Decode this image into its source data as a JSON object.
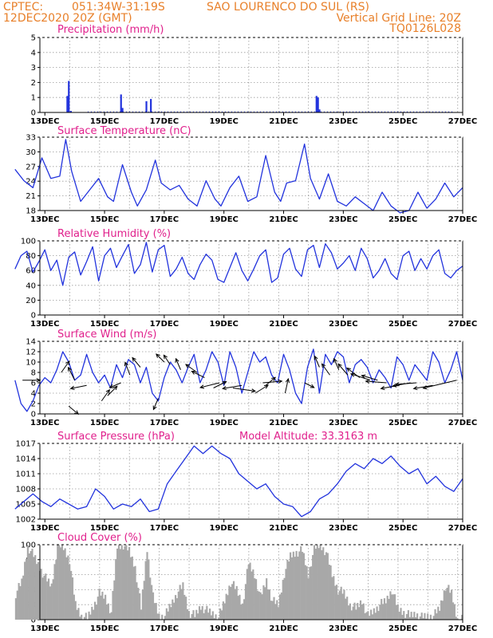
{
  "header": {
    "line1_left": "CPTEC:",
    "coords": "051:34W-31:19S",
    "location": "SAO LOURENCO DO SUL (RS)",
    "datetime": "12DEC2020 20Z (GMT)",
    "grid_note": "Vertical Grid Line: 20Z",
    "code": "TQ0126L028"
  },
  "colors": {
    "header": "#e8802a",
    "title": "#e0208c",
    "line": "#2233dd",
    "cloud": "#a8a8a8",
    "arrow": "#000000"
  },
  "x_axis": {
    "ticks": [
      "13DEC",
      "15DEC",
      "17DEC",
      "19DEC",
      "21DEC",
      "23DEC",
      "25DEC",
      "27DEC"
    ]
  },
  "chart_data": [
    {
      "type": "bar",
      "title": "Precipitation (mm/h)",
      "ylim": [
        0,
        5
      ],
      "yticks": [
        "0",
        "1",
        "2",
        "3",
        "4",
        "5"
      ],
      "points": [
        [
          13.75,
          1.1
        ],
        [
          13.8,
          2.1
        ],
        [
          13.87,
          0.1
        ],
        [
          15.55,
          1.2
        ],
        [
          15.6,
          0.3
        ],
        [
          16.4,
          0.75
        ],
        [
          16.55,
          0.9
        ],
        [
          22.1,
          1.1
        ],
        [
          22.15,
          1.0
        ],
        [
          22.2,
          0.2
        ]
      ]
    },
    {
      "type": "line",
      "title": "Surface Temperature (nC)",
      "ylim": [
        17,
        33
      ],
      "yticks": [
        "18",
        "21",
        "24",
        "27",
        "30",
        "33"
      ],
      "x": [
        12.0,
        12.3,
        12.6,
        12.9,
        13.2,
        13.5,
        13.7,
        13.9,
        14.2,
        14.5,
        14.8,
        15.1,
        15.3,
        15.6,
        15.9,
        16.1,
        16.4,
        16.7,
        16.9,
        17.2,
        17.5,
        17.8,
        18.1,
        18.4,
        18.7,
        18.9,
        19.2,
        19.5,
        19.8,
        20.1,
        20.4,
        20.7,
        20.9,
        21.1,
        21.4,
        21.7,
        21.9,
        22.2,
        22.5,
        22.8,
        23.1,
        23.4,
        23.7,
        24.0,
        24.3,
        24.6,
        24.9,
        25.2,
        25.5,
        25.8,
        26.1,
        26.4,
        26.7,
        27.0
      ],
      "values": [
        26.0,
        23.5,
        22.0,
        28.5,
        24.0,
        24.5,
        32.5,
        25.5,
        19.0,
        21.5,
        24.0,
        20.0,
        19.0,
        27.0,
        21.0,
        18.0,
        21.5,
        28.0,
        23.0,
        21.5,
        22.5,
        19.5,
        18.0,
        23.5,
        19.5,
        18.0,
        22.0,
        24.5,
        19.0,
        20.0,
        29.0,
        21.0,
        19.0,
        23.0,
        23.5,
        31.5,
        24.0,
        19.5,
        25.0,
        19.0,
        18.0,
        20.0,
        18.5,
        17.0,
        21.0,
        18.0,
        16.5,
        17.0,
        21.0,
        17.5,
        19.5,
        23.0,
        20.0,
        22.0
      ]
    },
    {
      "type": "line",
      "title": "Relative Humidity (%)",
      "ylim": [
        0,
        100
      ],
      "yticks": [
        "0",
        "20",
        "40",
        "60",
        "80",
        "100"
      ],
      "x": [
        12.0,
        12.2,
        12.4,
        12.6,
        12.8,
        13.0,
        13.2,
        13.4,
        13.6,
        13.8,
        14.0,
        14.2,
        14.4,
        14.6,
        14.8,
        15.0,
        15.2,
        15.4,
        15.6,
        15.8,
        16.0,
        16.2,
        16.4,
        16.6,
        16.8,
        17.0,
        17.2,
        17.4,
        17.6,
        17.8,
        18.0,
        18.2,
        18.4,
        18.6,
        18.8,
        19.0,
        19.2,
        19.4,
        19.6,
        19.8,
        20.0,
        20.2,
        20.4,
        20.6,
        20.8,
        21.0,
        21.2,
        21.4,
        21.6,
        21.8,
        22.0,
        22.2,
        22.4,
        22.6,
        22.8,
        23.0,
        23.2,
        23.4,
        23.6,
        23.8,
        24.0,
        24.2,
        24.4,
        24.6,
        24.8,
        25.0,
        25.2,
        25.4,
        25.6,
        25.8,
        26.0,
        26.2,
        26.4,
        26.6,
        26.8,
        27.0
      ],
      "values": [
        62,
        80,
        86,
        58,
        72,
        88,
        60,
        74,
        40,
        78,
        85,
        54,
        72,
        92,
        46,
        80,
        90,
        64,
        80,
        95,
        56,
        68,
        98,
        58,
        88,
        94,
        52,
        62,
        78,
        56,
        48,
        68,
        82,
        74,
        48,
        44,
        64,
        84,
        60,
        46,
        62,
        80,
        88,
        44,
        50,
        82,
        90,
        62,
        52,
        88,
        94,
        64,
        96,
        84,
        62,
        70,
        80,
        60,
        90,
        76,
        50,
        60,
        76,
        56,
        48,
        80,
        86,
        60,
        76,
        62,
        80,
        88,
        56,
        50,
        60,
        66
      ]
    },
    {
      "type": "line",
      "title": "Surface Wind (m/s)",
      "ylim": [
        0,
        14
      ],
      "yticks": [
        "0",
        "2",
        "4",
        "6",
        "8",
        "10",
        "12",
        "14"
      ],
      "x": [
        12.0,
        12.2,
        12.4,
        12.6,
        12.8,
        13.0,
        13.2,
        13.4,
        13.6,
        13.8,
        14.0,
        14.2,
        14.4,
        14.6,
        14.8,
        15.0,
        15.2,
        15.4,
        15.6,
        15.8,
        16.0,
        16.2,
        16.4,
        16.6,
        16.8,
        17.0,
        17.2,
        17.4,
        17.6,
        17.8,
        18.0,
        18.2,
        18.4,
        18.6,
        18.8,
        19.0,
        19.2,
        19.4,
        19.6,
        19.8,
        20.0,
        20.2,
        20.4,
        20.6,
        20.8,
        21.0,
        21.2,
        21.4,
        21.6,
        21.8,
        22.0,
        22.2,
        22.4,
        22.6,
        22.8,
        23.0,
        23.2,
        23.4,
        23.6,
        23.8,
        24.0,
        24.2,
        24.4,
        24.6,
        24.8,
        25.0,
        25.2,
        25.4,
        25.6,
        25.8,
        26.0,
        26.2,
        26.4,
        26.6,
        26.8,
        27.0
      ],
      "values": [
        6.5,
        2.0,
        0.5,
        2.5,
        5.5,
        7.0,
        6.0,
        8.5,
        12.0,
        10.0,
        6.5,
        7.5,
        11.5,
        8.0,
        6.0,
        7.5,
        5.0,
        9.5,
        7.0,
        10.5,
        9.5,
        6.0,
        9.0,
        4.0,
        2.5,
        7.0,
        10.0,
        8.5,
        6.0,
        9.0,
        11.5,
        6.0,
        8.5,
        12.0,
        10.0,
        5.5,
        12.0,
        9.0,
        4.0,
        8.0,
        12.0,
        10.0,
        11.0,
        7.5,
        6.0,
        11.5,
        8.5,
        4.0,
        2.0,
        9.0,
        12.5,
        4.0,
        11.5,
        9.5,
        12.0,
        11.0,
        6.0,
        9.5,
        10.5,
        9.0,
        6.0,
        8.5,
        7.0,
        5.0,
        11.0,
        9.5,
        6.5,
        9.5,
        8.0,
        6.5,
        12.0,
        10.0,
        6.0,
        8.5,
        12.0,
        6.5
      ]
    },
    {
      "type": "line",
      "title": "Surface Pressure (hPa)",
      "annotation": "Model Altitude: 33.3163 m",
      "ylim": [
        1002,
        1017
      ],
      "yticks": [
        "1002",
        "1005",
        "1008",
        "1011",
        "1014",
        "1017"
      ],
      "x": [
        12.0,
        12.3,
        12.6,
        12.9,
        13.2,
        13.5,
        13.8,
        14.1,
        14.4,
        14.7,
        15.0,
        15.3,
        15.6,
        15.9,
        16.2,
        16.5,
        16.8,
        17.1,
        17.4,
        17.7,
        18.0,
        18.3,
        18.6,
        18.9,
        19.2,
        19.5,
        19.8,
        20.1,
        20.4,
        20.7,
        21.0,
        21.3,
        21.6,
        21.9,
        22.2,
        22.5,
        22.8,
        23.1,
        23.4,
        23.7,
        24.0,
        24.3,
        24.6,
        24.9,
        25.2,
        25.5,
        25.8,
        26.1,
        26.4,
        26.7,
        27.0
      ],
      "values": [
        1004.0,
        1005.5,
        1007.0,
        1005.5,
        1004.5,
        1006.0,
        1005.0,
        1004.0,
        1004.5,
        1008.0,
        1006.5,
        1004.0,
        1005.0,
        1004.5,
        1006.0,
        1003.5,
        1004.0,
        1009.0,
        1011.5,
        1014.0,
        1016.5,
        1015.0,
        1016.5,
        1015.0,
        1014.0,
        1011.0,
        1009.5,
        1008.0,
        1009.0,
        1006.5,
        1005.0,
        1004.5,
        1002.5,
        1003.5,
        1006.0,
        1007.0,
        1009.0,
        1011.5,
        1013.0,
        1012.0,
        1014.0,
        1013.0,
        1014.5,
        1012.5,
        1011.0,
        1012.0,
        1009.0,
        1010.5,
        1008.5,
        1007.5,
        1010.0
      ]
    },
    {
      "type": "area",
      "title": "Cloud Cover (%)",
      "ylim": [
        0,
        100
      ],
      "yticks": [
        "0",
        "20",
        "40",
        "60",
        "80",
        "100"
      ],
      "x": [
        12.0,
        12.2,
        12.4,
        12.6,
        12.8,
        13.0,
        13.2,
        13.4,
        13.6,
        13.8,
        14.0,
        14.2,
        14.4,
        14.6,
        14.8,
        15.0,
        15.2,
        15.4,
        15.6,
        15.8,
        16.0,
        16.2,
        16.4,
        16.6,
        16.8,
        17.0,
        17.2,
        17.4,
        17.6,
        17.8,
        18.0,
        18.2,
        18.4,
        18.6,
        18.8,
        19.0,
        19.2,
        19.4,
        19.6,
        19.8,
        20.0,
        20.2,
        20.4,
        20.6,
        20.8,
        21.0,
        21.2,
        21.4,
        21.6,
        21.8,
        22.0,
        22.2,
        22.4,
        22.6,
        22.8,
        23.0,
        23.2,
        23.4,
        23.6,
        23.8,
        24.0,
        24.2,
        24.4,
        24.6,
        24.8,
        25.0,
        25.2,
        25.4,
        25.6,
        25.8,
        26.0,
        26.2,
        26.4,
        26.6,
        26.8,
        27.0
      ],
      "values": [
        35,
        50,
        98,
        85,
        70,
        55,
        45,
        100,
        96,
        80,
        20,
        5,
        2,
        18,
        35,
        30,
        10,
        98,
        100,
        92,
        70,
        15,
        95,
        30,
        5,
        5,
        20,
        35,
        45,
        10,
        5,
        18,
        12,
        8,
        3,
        25,
        50,
        40,
        20,
        75,
        60,
        30,
        52,
        25,
        20,
        62,
        85,
        90,
        92,
        60,
        95,
        100,
        90,
        60,
        40,
        35,
        20,
        15,
        25,
        5,
        12,
        20,
        25,
        40,
        15,
        10,
        5,
        8,
        3,
        5,
        5,
        15,
        45,
        35,
        0,
        0
      ]
    }
  ],
  "wind_arrows": [
    {
      "x": 12.25,
      "y": 6.5,
      "dx": 22,
      "dy": 0
    },
    {
      "x": 13.8,
      "y": 1.5,
      "dx": 12,
      "dy": 10
    },
    {
      "x": 13.55,
      "y": 8.0,
      "dx": 10,
      "dy": -14
    },
    {
      "x": 14.0,
      "y": 6.5,
      "dx": -8,
      "dy": -16
    },
    {
      "x": 14.4,
      "y": 5.5,
      "dx": -20,
      "dy": 4
    },
    {
      "x": 14.9,
      "y": 2.5,
      "dx": 10,
      "dy": -14
    },
    {
      "x": 15.1,
      "y": 3.5,
      "dx": 12,
      "dy": -12
    },
    {
      "x": 15.55,
      "y": 6.0,
      "dx": -14,
      "dy": 6
    },
    {
      "x": 15.85,
      "y": 7.5,
      "dx": -6,
      "dy": -16
    },
    {
      "x": 16.2,
      "y": 9.0,
      "dx": -10,
      "dy": -12
    },
    {
      "x": 16.8,
      "y": 3.0,
      "dx": -6,
      "dy": 14
    },
    {
      "x": 17.0,
      "y": 10.0,
      "dx": -10,
      "dy": -10
    },
    {
      "x": 17.2,
      "y": 9.5,
      "dx": -8,
      "dy": -12
    },
    {
      "x": 17.55,
      "y": 8.5,
      "dx": -6,
      "dy": -14
    },
    {
      "x": 18.1,
      "y": 8.0,
      "dx": -14,
      "dy": -10
    },
    {
      "x": 18.35,
      "y": 7.0,
      "dx": -16,
      "dy": -8
    },
    {
      "x": 18.85,
      "y": 6.0,
      "dx": -24,
      "dy": 6
    },
    {
      "x": 18.65,
      "y": 5.0,
      "dx": 16,
      "dy": -8
    },
    {
      "x": 19.3,
      "y": 5.0,
      "dx": 28,
      "dy": 4
    },
    {
      "x": 19.6,
      "y": 5.5,
      "dx": -24,
      "dy": 4
    },
    {
      "x": 20.05,
      "y": 4.0,
      "dx": 16,
      "dy": -10
    },
    {
      "x": 20.4,
      "y": 5.5,
      "dx": 12,
      "dy": -10
    },
    {
      "x": 20.3,
      "y": 6.0,
      "dx": 24,
      "dy": -2
    },
    {
      "x": 21.05,
      "y": 4.0,
      "dx": 4,
      "dy": -18
    },
    {
      "x": 21.7,
      "y": 6.0,
      "dx": 12,
      "dy": 6
    },
    {
      "x": 22.2,
      "y": 9.0,
      "dx": -6,
      "dy": -14
    },
    {
      "x": 22.55,
      "y": 7.5,
      "dx": -10,
      "dy": -14
    },
    {
      "x": 22.85,
      "y": 8.5,
      "dx": -6,
      "dy": -14
    },
    {
      "x": 23.15,
      "y": 7.5,
      "dx": -12,
      "dy": -14
    },
    {
      "x": 23.55,
      "y": 7.0,
      "dx": -16,
      "dy": -12
    },
    {
      "x": 23.9,
      "y": 6.5,
      "dx": -24,
      "dy": -8
    },
    {
      "x": 24.15,
      "y": 6.5,
      "dx": -20,
      "dy": -6
    },
    {
      "x": 24.45,
      "y": 6.0,
      "dx": -26,
      "dy": -2
    },
    {
      "x": 24.85,
      "y": 5.5,
      "dx": -22,
      "dy": 4
    },
    {
      "x": 25.25,
      "y": 6.0,
      "dx": -22,
      "dy": 4
    },
    {
      "x": 25.45,
      "y": 6.0,
      "dx": -26,
      "dy": 2
    },
    {
      "x": 26.0,
      "y": 5.5,
      "dx": -24,
      "dy": 4
    },
    {
      "x": 26.8,
      "y": 6.5,
      "dx": -42,
      "dy": 10
    }
  ]
}
